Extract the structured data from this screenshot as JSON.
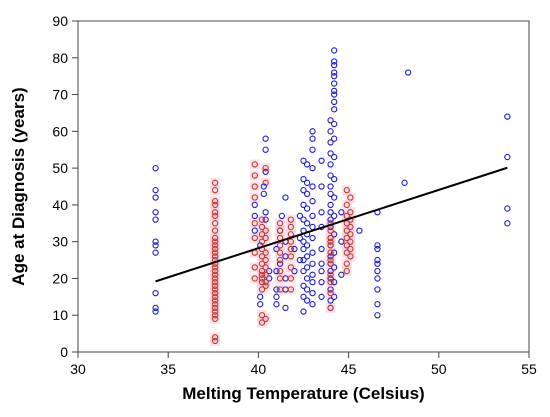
{
  "chart_data": {
    "type": "scatter",
    "title": "",
    "xlabel": "Melting Temperature (Celsius)",
    "ylabel": "Age at Diagnosis (years)",
    "xlim": [
      30,
      55
    ],
    "ylim": [
      0,
      90
    ],
    "xticks": [
      30,
      35,
      40,
      45,
      50,
      55
    ],
    "yticks": [
      0,
      10,
      20,
      30,
      40,
      50,
      60,
      70,
      80,
      90
    ],
    "grid": false,
    "legend": "none",
    "colors": {
      "blue": "#1a1adb",
      "red": "#c0392b",
      "highlight": "#f7c9dc",
      "line": "#000000"
    },
    "regression_line": {
      "x": [
        34.3,
        53.8
      ],
      "y": [
        19.2,
        50.1
      ]
    },
    "series": [
      {
        "color": "blue",
        "points": [
          [
            34.3,
            11
          ],
          [
            34.3,
            12
          ],
          [
            34.3,
            16
          ],
          [
            34.3,
            27
          ],
          [
            34.3,
            29
          ],
          [
            34.3,
            30
          ],
          [
            34.3,
            36
          ],
          [
            34.3,
            38
          ],
          [
            34.3,
            42
          ],
          [
            34.3,
            44
          ],
          [
            34.3,
            50
          ],
          [
            39.8,
            33
          ],
          [
            39.8,
            37
          ],
          [
            39.8,
            40
          ],
          [
            40.1,
            13
          ],
          [
            40.1,
            15
          ],
          [
            40.1,
            29
          ],
          [
            40.3,
            43
          ],
          [
            40.3,
            45
          ],
          [
            40.4,
            36
          ],
          [
            40.4,
            38
          ],
          [
            40.4,
            49
          ],
          [
            40.4,
            55
          ],
          [
            40.4,
            58
          ],
          [
            40.6,
            20
          ],
          [
            40.6,
            22
          ],
          [
            41.0,
            13
          ],
          [
            41.0,
            15
          ],
          [
            41.0,
            17
          ],
          [
            41.0,
            22
          ],
          [
            41.0,
            28
          ],
          [
            41.2,
            24
          ],
          [
            41.2,
            33
          ],
          [
            41.3,
            37
          ],
          [
            41.5,
            12
          ],
          [
            41.5,
            17
          ],
          [
            41.5,
            20
          ],
          [
            41.5,
            26
          ],
          [
            41.5,
            30
          ],
          [
            41.5,
            42
          ],
          [
            42.0,
            22
          ],
          [
            42.0,
            28
          ],
          [
            42.3,
            25
          ],
          [
            42.3,
            31
          ],
          [
            42.3,
            37
          ],
          [
            42.5,
            11
          ],
          [
            42.5,
            15
          ],
          [
            42.5,
            18
          ],
          [
            42.5,
            22
          ],
          [
            42.5,
            25
          ],
          [
            42.5,
            28
          ],
          [
            42.5,
            30
          ],
          [
            42.5,
            33
          ],
          [
            42.5,
            36
          ],
          [
            42.5,
            40
          ],
          [
            42.5,
            44
          ],
          [
            42.5,
            47
          ],
          [
            42.5,
            52
          ],
          [
            42.7,
            14
          ],
          [
            42.7,
            17
          ],
          [
            42.7,
            20
          ],
          [
            42.7,
            23
          ],
          [
            42.7,
            26
          ],
          [
            42.7,
            29
          ],
          [
            42.7,
            32
          ],
          [
            42.7,
            35
          ],
          [
            42.7,
            39
          ],
          [
            42.7,
            43
          ],
          [
            42.7,
            46
          ],
          [
            42.7,
            51
          ],
          [
            43.0,
            13
          ],
          [
            43.0,
            16
          ],
          [
            43.0,
            19
          ],
          [
            43.0,
            21
          ],
          [
            43.0,
            24
          ],
          [
            43.0,
            27
          ],
          [
            43.0,
            31
          ],
          [
            43.0,
            34
          ],
          [
            43.0,
            37
          ],
          [
            43.0,
            41
          ],
          [
            43.0,
            45
          ],
          [
            43.0,
            50
          ],
          [
            43.0,
            55
          ],
          [
            43.0,
            58
          ],
          [
            43.0,
            60
          ],
          [
            43.5,
            15
          ],
          [
            43.5,
            19
          ],
          [
            43.5,
            22
          ],
          [
            43.5,
            24
          ],
          [
            43.5,
            28
          ],
          [
            43.5,
            34
          ],
          [
            43.5,
            38
          ],
          [
            43.5,
            45
          ],
          [
            43.5,
            52
          ],
          [
            44.0,
            12
          ],
          [
            44.0,
            14
          ],
          [
            44.0,
            17
          ],
          [
            44.0,
            20
          ],
          [
            44.0,
            22
          ],
          [
            44.0,
            24
          ],
          [
            44.0,
            26
          ],
          [
            44.0,
            29
          ],
          [
            44.0,
            31
          ],
          [
            44.0,
            34
          ],
          [
            44.0,
            36
          ],
          [
            44.0,
            38
          ],
          [
            44.0,
            40
          ],
          [
            44.0,
            43
          ],
          [
            44.0,
            45
          ],
          [
            44.0,
            48
          ],
          [
            44.0,
            51
          ],
          [
            44.0,
            54
          ],
          [
            44.0,
            57
          ],
          [
            44.0,
            60
          ],
          [
            44.0,
            63
          ],
          [
            44.2,
            15
          ],
          [
            44.2,
            19
          ],
          [
            44.2,
            23
          ],
          [
            44.2,
            27
          ],
          [
            44.2,
            32
          ],
          [
            44.2,
            37
          ],
          [
            44.2,
            42
          ],
          [
            44.2,
            47
          ],
          [
            44.2,
            53
          ],
          [
            44.2,
            58
          ],
          [
            44.2,
            62
          ],
          [
            44.2,
            66
          ],
          [
            44.2,
            68
          ],
          [
            44.2,
            70
          ],
          [
            44.2,
            71
          ],
          [
            44.2,
            73
          ],
          [
            44.2,
            75
          ],
          [
            44.2,
            76
          ],
          [
            44.2,
            78
          ],
          [
            44.2,
            79
          ],
          [
            44.2,
            82
          ],
          [
            44.6,
            21
          ],
          [
            44.6,
            30
          ],
          [
            44.6,
            38
          ],
          [
            45.6,
            33
          ],
          [
            46.6,
            10
          ],
          [
            46.6,
            13
          ],
          [
            46.6,
            17
          ],
          [
            46.6,
            20
          ],
          [
            46.6,
            22
          ],
          [
            46.6,
            24
          ],
          [
            46.6,
            25
          ],
          [
            46.6,
            28
          ],
          [
            46.6,
            29
          ],
          [
            46.6,
            38
          ],
          [
            48.1,
            46
          ],
          [
            48.3,
            76
          ],
          [
            53.8,
            35
          ],
          [
            53.8,
            39
          ],
          [
            53.8,
            53
          ],
          [
            53.8,
            64
          ]
        ]
      },
      {
        "color": "red",
        "points": [
          [
            37.6,
            3
          ],
          [
            37.6,
            4
          ],
          [
            37.6,
            9
          ],
          [
            37.6,
            10
          ],
          [
            37.6,
            11
          ],
          [
            37.6,
            12
          ],
          [
            37.6,
            13
          ],
          [
            37.6,
            14
          ],
          [
            37.6,
            15
          ],
          [
            37.6,
            16
          ],
          [
            37.6,
            17
          ],
          [
            37.6,
            18
          ],
          [
            37.6,
            19
          ],
          [
            37.6,
            20
          ],
          [
            37.6,
            21
          ],
          [
            37.6,
            22
          ],
          [
            37.6,
            23
          ],
          [
            37.6,
            24
          ],
          [
            37.6,
            25
          ],
          [
            37.6,
            26
          ],
          [
            37.6,
            27
          ],
          [
            37.6,
            28
          ],
          [
            37.6,
            29
          ],
          [
            37.6,
            30
          ],
          [
            37.6,
            31
          ],
          [
            37.6,
            33
          ],
          [
            37.6,
            35
          ],
          [
            37.6,
            37
          ],
          [
            37.6,
            38
          ],
          [
            37.6,
            40
          ],
          [
            37.6,
            41
          ],
          [
            37.6,
            44
          ],
          [
            37.6,
            46
          ],
          [
            39.8,
            20
          ],
          [
            39.8,
            23
          ],
          [
            39.8,
            27
          ],
          [
            39.8,
            31
          ],
          [
            39.8,
            35
          ],
          [
            39.8,
            42
          ],
          [
            39.8,
            45
          ],
          [
            39.8,
            48
          ],
          [
            39.8,
            51
          ],
          [
            40.2,
            8
          ],
          [
            40.2,
            10
          ],
          [
            40.2,
            17
          ],
          [
            40.2,
            19
          ],
          [
            40.2,
            20
          ],
          [
            40.2,
            21
          ],
          [
            40.2,
            22
          ],
          [
            40.2,
            24
          ],
          [
            40.2,
            26
          ],
          [
            40.2,
            28
          ],
          [
            40.2,
            30
          ],
          [
            40.2,
            32
          ],
          [
            40.2,
            34
          ],
          [
            40.2,
            36
          ],
          [
            40.4,
            9
          ],
          [
            40.4,
            18
          ],
          [
            40.4,
            19
          ],
          [
            40.4,
            21
          ],
          [
            40.4,
            23
          ],
          [
            40.4,
            25
          ],
          [
            40.4,
            27
          ],
          [
            40.4,
            31
          ],
          [
            40.4,
            33
          ],
          [
            40.4,
            46
          ],
          [
            40.4,
            50
          ],
          [
            41.2,
            17
          ],
          [
            41.2,
            20
          ],
          [
            41.2,
            22
          ],
          [
            41.2,
            25
          ],
          [
            41.2,
            27
          ],
          [
            41.2,
            29
          ],
          [
            41.2,
            31
          ],
          [
            41.2,
            33
          ],
          [
            41.2,
            35
          ],
          [
            41.8,
            17
          ],
          [
            41.8,
            20
          ],
          [
            41.8,
            23
          ],
          [
            41.8,
            26
          ],
          [
            41.8,
            28
          ],
          [
            41.8,
            30
          ],
          [
            41.8,
            32
          ],
          [
            41.8,
            34
          ],
          [
            41.8,
            36
          ],
          [
            44.0,
            12
          ],
          [
            44.0,
            16
          ],
          [
            44.0,
            19
          ],
          [
            44.0,
            21
          ],
          [
            44.0,
            24
          ],
          [
            44.0,
            25
          ],
          [
            44.0,
            27
          ],
          [
            44.0,
            29
          ],
          [
            44.0,
            30
          ],
          [
            44.0,
            31
          ],
          [
            44.0,
            33
          ],
          [
            44.0,
            35
          ],
          [
            44.9,
            22
          ],
          [
            44.9,
            24
          ],
          [
            44.9,
            27
          ],
          [
            44.9,
            29
          ],
          [
            44.9,
            31
          ],
          [
            44.9,
            33
          ],
          [
            44.9,
            35
          ],
          [
            44.9,
            37
          ],
          [
            44.9,
            40
          ],
          [
            44.9,
            44
          ],
          [
            45.1,
            26
          ],
          [
            45.1,
            28
          ],
          [
            45.1,
            30
          ],
          [
            45.1,
            32
          ],
          [
            45.1,
            34
          ],
          [
            45.1,
            36
          ],
          [
            45.1,
            38
          ],
          [
            45.1,
            42
          ]
        ]
      }
    ]
  }
}
